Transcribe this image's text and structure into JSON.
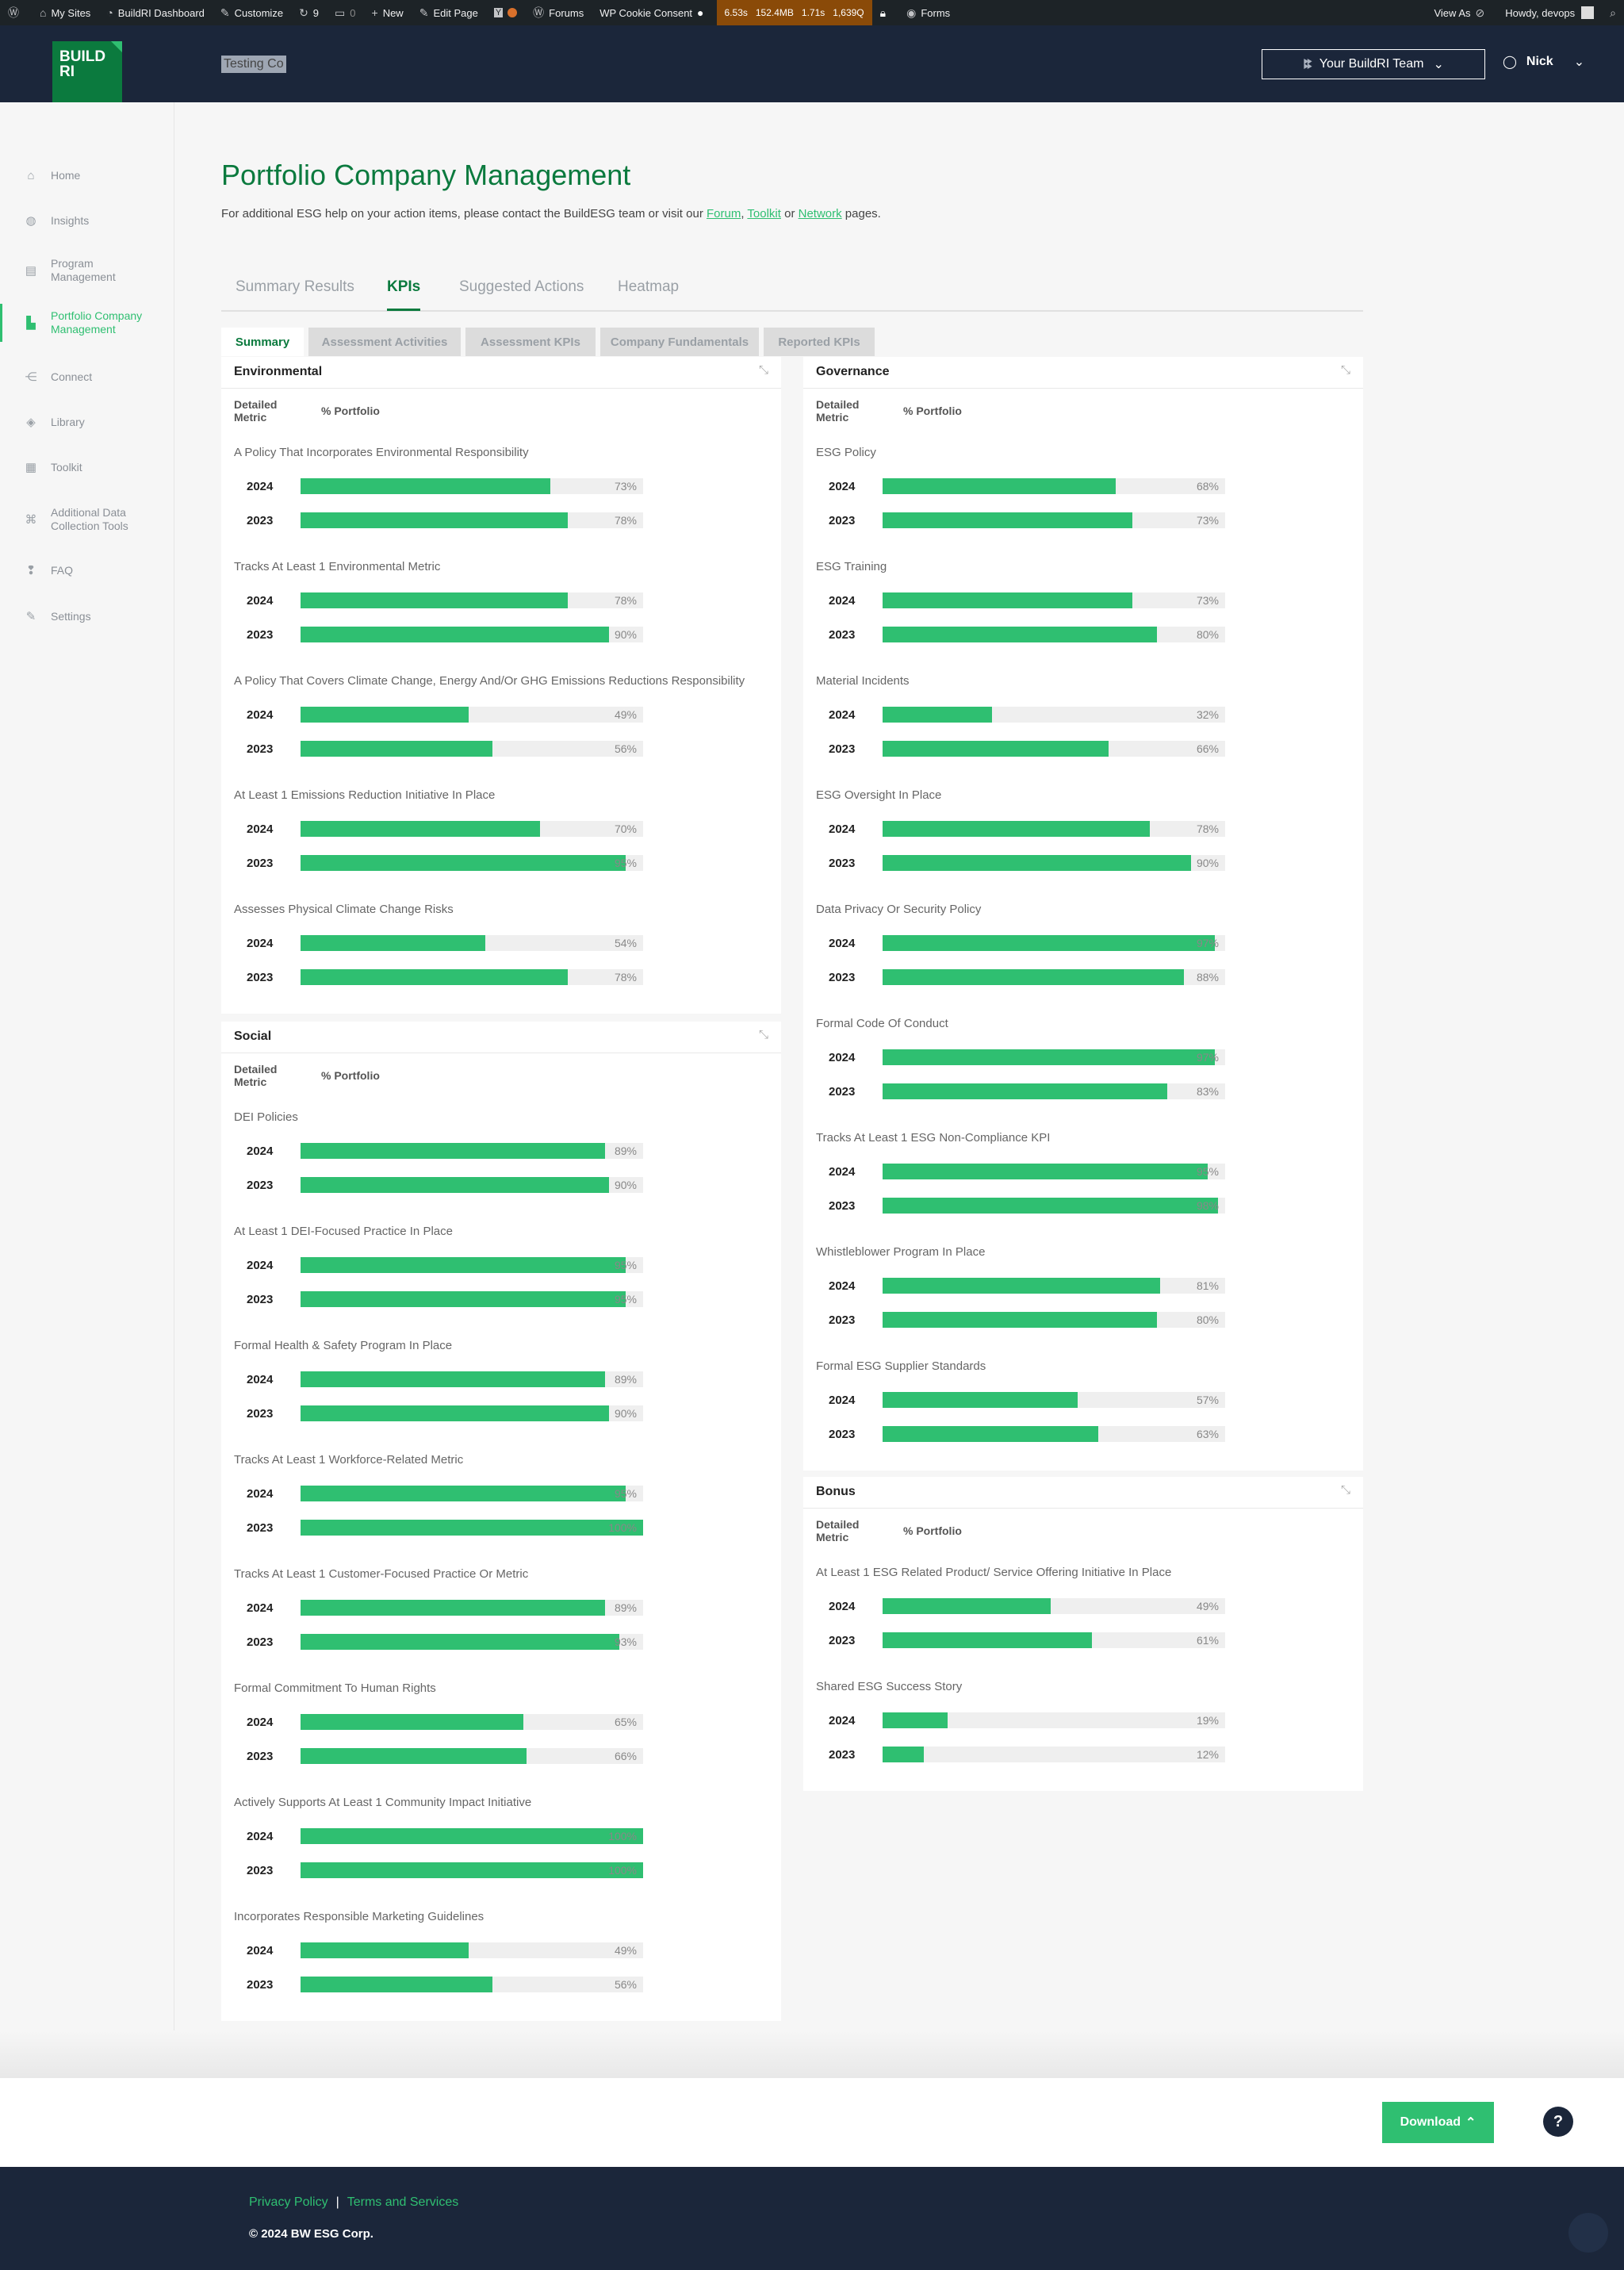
{
  "admin_bar": {
    "my_sites": "My Sites",
    "dashboard": "BuildRI Dashboard",
    "customize": "Customize",
    "updates_count": "9",
    "comments_count": "0",
    "new": "New",
    "edit_page": "Edit Page",
    "forums": "Forums",
    "cookie": "WP Cookie Consent",
    "perf": [
      "6.53s",
      "152.4MB",
      "1.71s",
      "1,639Q"
    ],
    "forms": "Forms",
    "view_as": "View As",
    "howdy": "Howdy, devops"
  },
  "header": {
    "logo_line1": "BUILD",
    "logo_line2": "RI",
    "company": "Testing Co",
    "team_button": "Your BuildRI Team",
    "user": "Nick"
  },
  "sidebar": {
    "items": [
      {
        "label": "Home",
        "icon": "home-icon",
        "glyph": "⌂"
      },
      {
        "label": "Insights",
        "icon": "globe-icon",
        "glyph": "◍"
      },
      {
        "label": "Program Management",
        "icon": "chart-icon",
        "glyph": "▤"
      },
      {
        "label": "Portfolio Company Management",
        "icon": "portfolio-icon",
        "glyph": "▙"
      },
      {
        "label": "Connect",
        "icon": "network-icon",
        "glyph": "⋲"
      },
      {
        "label": "Library",
        "icon": "layers-icon",
        "glyph": "◈"
      },
      {
        "label": "Toolkit",
        "icon": "toolkit-icon",
        "glyph": "▦"
      },
      {
        "label": "Additional Data Collection Tools",
        "icon": "command-icon",
        "glyph": "⌘"
      },
      {
        "label": "FAQ",
        "icon": "faq-icon",
        "glyph": "❢"
      },
      {
        "label": "Settings",
        "icon": "wrench-icon",
        "glyph": "✎"
      }
    ]
  },
  "page": {
    "title": "Portfolio Company Management",
    "intro_before": "For additional ESG help on your action items, please contact the BuildESG team or visit our ",
    "link_forum": "Forum",
    "sep1": ", ",
    "link_toolkit": "Toolkit",
    "sep2": " or ",
    "link_network": "Network",
    "intro_after": " pages."
  },
  "tabs": [
    "Summary Results",
    "KPIs",
    "Suggested Actions",
    "Heatmap"
  ],
  "subtabs": [
    "Summary",
    "Assessment Activities",
    "Assessment KPIs",
    "Company Fundamentals",
    "Reported KPIs"
  ],
  "table_headers": {
    "metric": "Detailed Metric",
    "portfolio": "% Portfolio"
  },
  "panels": [
    {
      "title": "Environmental",
      "metrics": [
        {
          "name": "A Policy That Incorporates Environmental Responsibility",
          "rows": [
            {
              "year": "2024",
              "pct": 73
            },
            {
              "year": "2023",
              "pct": 78
            }
          ]
        },
        {
          "name": "Tracks At Least 1 Environmental Metric",
          "rows": [
            {
              "year": "2024",
              "pct": 78
            },
            {
              "year": "2023",
              "pct": 90
            }
          ]
        },
        {
          "name": "A Policy That Covers Climate Change, Energy And/Or GHG Emissions Reductions Responsibility",
          "rows": [
            {
              "year": "2024",
              "pct": 49
            },
            {
              "year": "2023",
              "pct": 56
            }
          ]
        },
        {
          "name": "At Least 1 Emissions Reduction Initiative In Place",
          "rows": [
            {
              "year": "2024",
              "pct": 70
            },
            {
              "year": "2023",
              "pct": 95
            }
          ]
        },
        {
          "name": "Assesses Physical Climate Change Risks",
          "rows": [
            {
              "year": "2024",
              "pct": 54
            },
            {
              "year": "2023",
              "pct": 78
            }
          ]
        }
      ]
    },
    {
      "title": "Social",
      "metrics": [
        {
          "name": "DEI Policies",
          "rows": [
            {
              "year": "2024",
              "pct": 89
            },
            {
              "year": "2023",
              "pct": 90
            }
          ]
        },
        {
          "name": "At Least 1 DEI-Focused Practice In Place",
          "rows": [
            {
              "year": "2024",
              "pct": 95
            },
            {
              "year": "2023",
              "pct": 95
            }
          ]
        },
        {
          "name": "Formal Health & Safety Program In Place",
          "rows": [
            {
              "year": "2024",
              "pct": 89
            },
            {
              "year": "2023",
              "pct": 90
            }
          ]
        },
        {
          "name": "Tracks At Least 1 Workforce-Related Metric",
          "rows": [
            {
              "year": "2024",
              "pct": 95
            },
            {
              "year": "2023",
              "pct": 100
            }
          ]
        },
        {
          "name": "Tracks At Least 1 Customer-Focused Practice Or Metric",
          "rows": [
            {
              "year": "2024",
              "pct": 89
            },
            {
              "year": "2023",
              "pct": 93
            }
          ]
        },
        {
          "name": "Formal Commitment To Human Rights",
          "rows": [
            {
              "year": "2024",
              "pct": 65
            },
            {
              "year": "2023",
              "pct": 66
            }
          ]
        },
        {
          "name": "Actively Supports At Least 1 Community Impact Initiative",
          "rows": [
            {
              "year": "2024",
              "pct": 100
            },
            {
              "year": "2023",
              "pct": 100
            }
          ]
        },
        {
          "name": "Incorporates Responsible Marketing Guidelines",
          "rows": [
            {
              "year": "2024",
              "pct": 49
            },
            {
              "year": "2023",
              "pct": 56
            }
          ]
        }
      ]
    },
    {
      "title": "Governance",
      "metrics": [
        {
          "name": "ESG Policy",
          "rows": [
            {
              "year": "2024",
              "pct": 68
            },
            {
              "year": "2023",
              "pct": 73
            }
          ]
        },
        {
          "name": "ESG Training",
          "rows": [
            {
              "year": "2024",
              "pct": 73
            },
            {
              "year": "2023",
              "pct": 80
            }
          ]
        },
        {
          "name": "Material Incidents",
          "rows": [
            {
              "year": "2024",
              "pct": 32
            },
            {
              "year": "2023",
              "pct": 66
            }
          ]
        },
        {
          "name": "ESG Oversight In Place",
          "rows": [
            {
              "year": "2024",
              "pct": 78
            },
            {
              "year": "2023",
              "pct": 90
            }
          ]
        },
        {
          "name": "Data Privacy Or Security Policy",
          "rows": [
            {
              "year": "2024",
              "pct": 97
            },
            {
              "year": "2023",
              "pct": 88
            }
          ]
        },
        {
          "name": "Formal Code Of Conduct",
          "rows": [
            {
              "year": "2024",
              "pct": 97
            },
            {
              "year": "2023",
              "pct": 83
            }
          ]
        },
        {
          "name": "Tracks At Least 1 ESG Non-Compliance KPI",
          "rows": [
            {
              "year": "2024",
              "pct": 95
            },
            {
              "year": "2023",
              "pct": 98
            }
          ]
        },
        {
          "name": "Whistleblower Program In Place",
          "rows": [
            {
              "year": "2024",
              "pct": 81
            },
            {
              "year": "2023",
              "pct": 80
            }
          ]
        },
        {
          "name": "Formal ESG Supplier Standards",
          "rows": [
            {
              "year": "2024",
              "pct": 57
            },
            {
              "year": "2023",
              "pct": 63
            }
          ]
        }
      ]
    },
    {
      "title": "Bonus",
      "metrics": [
        {
          "name": "At Least 1 ESG Related Product/ Service Offering Initiative In Place",
          "rows": [
            {
              "year": "2024",
              "pct": 49
            },
            {
              "year": "2023",
              "pct": 61
            }
          ]
        },
        {
          "name": "Shared ESG Success Story",
          "rows": [
            {
              "year": "2024",
              "pct": 19
            },
            {
              "year": "2023",
              "pct": 12
            }
          ]
        }
      ]
    }
  ],
  "bottom": {
    "download": "Download",
    "help": "?"
  },
  "footer": {
    "privacy": "Privacy Policy",
    "separator": "|",
    "terms": "Terms and Services",
    "copyright": "© 2024 BW ESG Corp."
  }
}
